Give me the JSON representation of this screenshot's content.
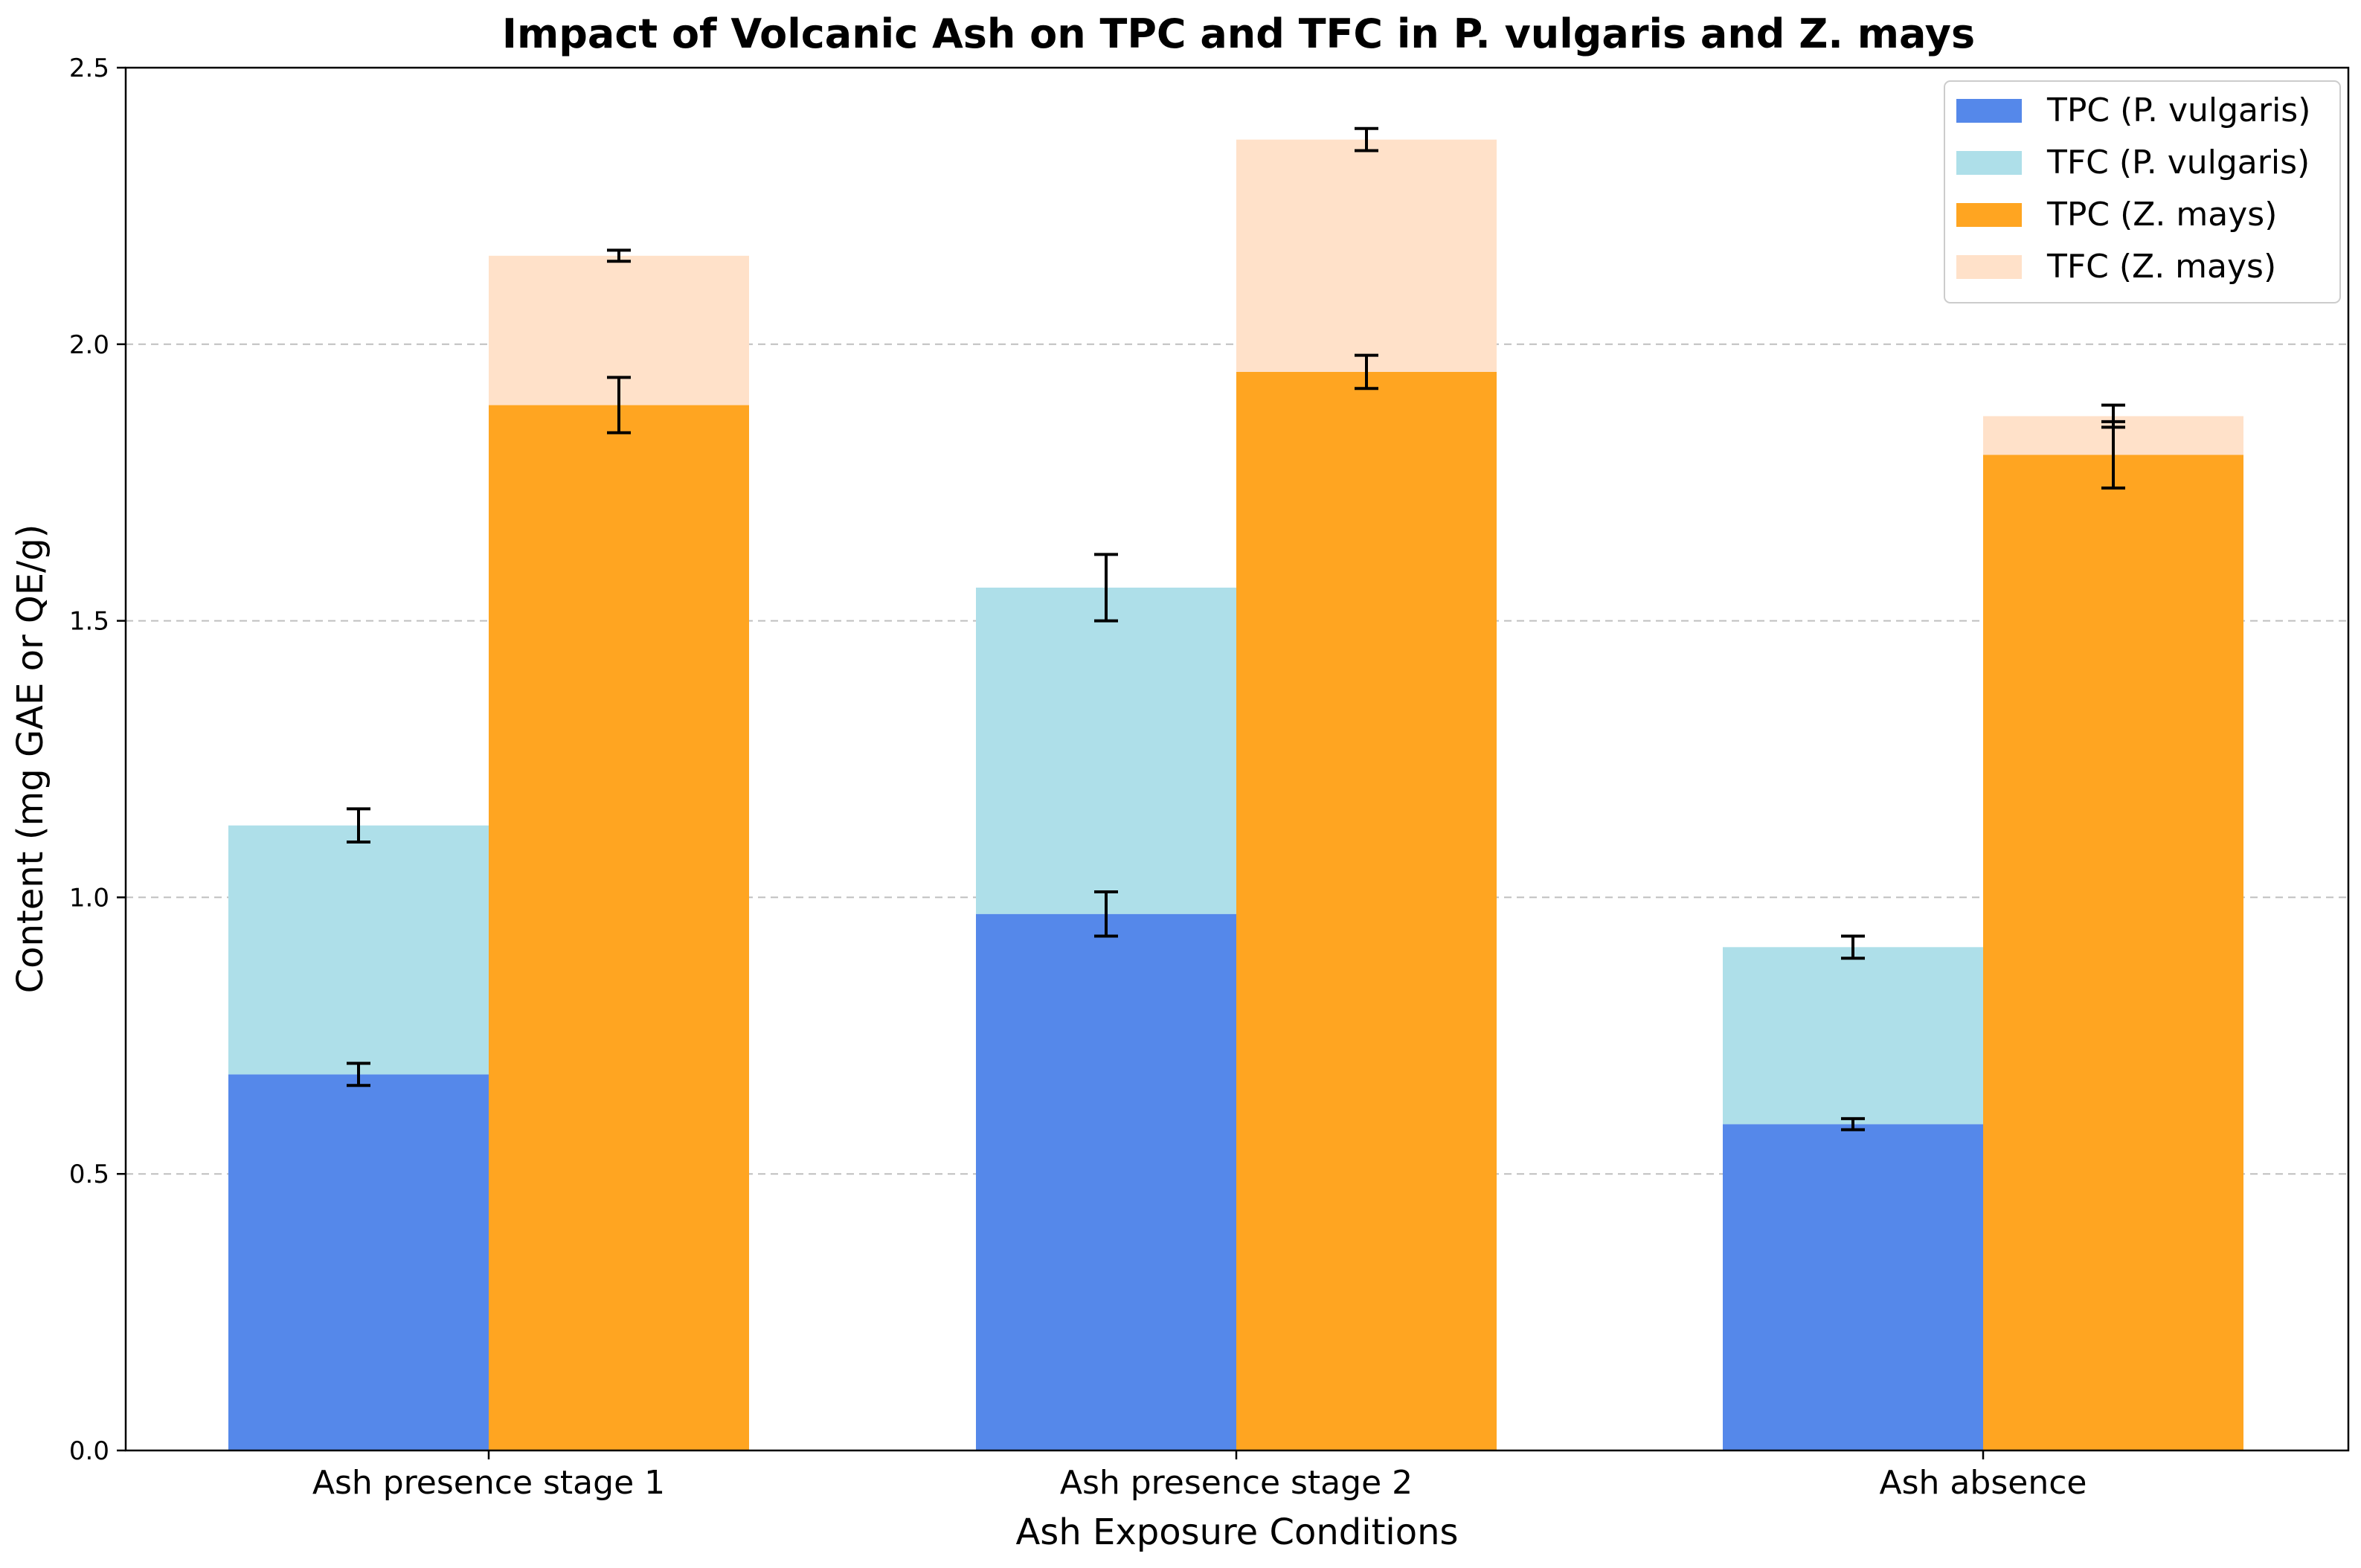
{
  "chart_data": {
    "type": "bar",
    "title": "Impact of Volcanic Ash on TPC and TFC in P. vulgaris and Z. mays",
    "xlabel": "Ash Exposure Conditions",
    "ylabel": "Content (mg GAE or QE/g)",
    "categories": [
      "Ash presence stage 1",
      "Ash presence stage 2",
      "Ash absence"
    ],
    "ylim": [
      0,
      2.5
    ],
    "yticks": [
      "0.0",
      "0.5",
      "1.0",
      "1.5",
      "2.0",
      "2.5"
    ],
    "grid": "horizontal dashed",
    "legend_position": "top-right",
    "series": [
      {
        "name": "TPC (P. vulgaris)",
        "group": "P. vulgaris",
        "stack": "base",
        "color": "#5588EA",
        "values": [
          0.68,
          0.97,
          0.59
        ],
        "errors": [
          0.02,
          0.04,
          0.01
        ]
      },
      {
        "name": "TFC (P. vulgaris)",
        "group": "P. vulgaris",
        "stack": "top",
        "color": "#AEDFE9",
        "values": [
          0.45,
          0.59,
          0.32
        ],
        "errors": [
          0.03,
          0.06,
          0.02
        ]
      },
      {
        "name": "TPC (Z. mays)",
        "group": "Z. mays",
        "stack": "base",
        "color": "#FFA521",
        "values": [
          1.89,
          1.95,
          1.8
        ],
        "errors": [
          0.05,
          0.03,
          0.06
        ]
      },
      {
        "name": "TFC (Z. mays)",
        "group": "Z. mays",
        "stack": "top",
        "color": "#FFE1C9",
        "values": [
          0.27,
          0.42,
          0.07
        ],
        "errors": [
          0.01,
          0.02,
          0.02
        ]
      }
    ]
  }
}
